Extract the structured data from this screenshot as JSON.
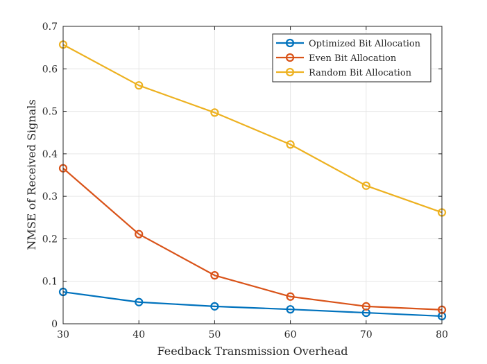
{
  "chart_data": {
    "type": "line",
    "title": "",
    "xlabel": "Feedback Transmission Overhead",
    "ylabel": "NMSE of Received Signals",
    "x": [
      30,
      40,
      50,
      60,
      70,
      80
    ],
    "xlim": [
      30,
      80
    ],
    "ylim": [
      0,
      0.7
    ],
    "xticks": [
      30,
      40,
      50,
      60,
      70,
      80
    ],
    "yticks": [
      0,
      0.1,
      0.2,
      0.3,
      0.4,
      0.5,
      0.6,
      0.7
    ],
    "ytick_labels": [
      "0",
      "0.1",
      "0.2",
      "0.3",
      "0.4",
      "0.5",
      "0.6",
      "0.7"
    ],
    "grid": true,
    "legend_position": "top-right",
    "series": [
      {
        "name": "Optimized Bit Allocation",
        "color": "#0072BD",
        "marker": "circle",
        "values": [
          0.075,
          0.051,
          0.041,
          0.034,
          0.026,
          0.018
        ]
      },
      {
        "name": "Even Bit Allocation",
        "color": "#D95319",
        "marker": "circle",
        "values": [
          0.366,
          0.211,
          0.114,
          0.064,
          0.041,
          0.033
        ]
      },
      {
        "name": "Random Bit Allocation",
        "color": "#EDB120",
        "marker": "circle",
        "values": [
          0.657,
          0.561,
          0.497,
          0.422,
          0.325,
          0.262
        ]
      }
    ]
  }
}
